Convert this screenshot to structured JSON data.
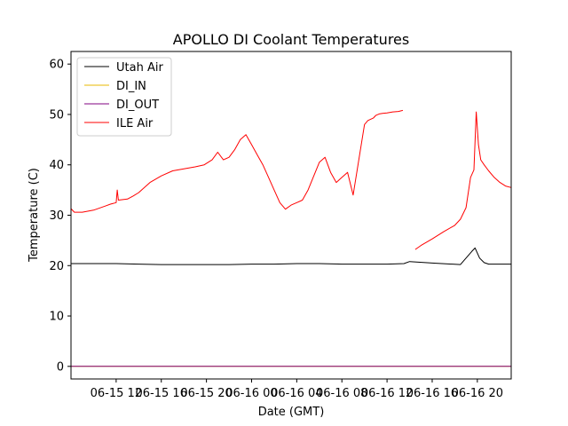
{
  "chart_data": {
    "type": "line",
    "title": "APOLLO DI Coolant Temperatures",
    "xlabel": "Date (GMT)",
    "ylabel": "Temperature (C)",
    "xlim": [
      0,
      39
    ],
    "ylim": [
      -2.5,
      62.5
    ],
    "yticks": [
      0,
      10,
      20,
      30,
      40,
      50,
      60
    ],
    "xticks": [
      {
        "x": 4,
        "label": "06-15 12"
      },
      {
        "x": 8,
        "label": "06-15 16"
      },
      {
        "x": 12,
        "label": "06-15 20"
      },
      {
        "x": 16,
        "label": "06-16 00"
      },
      {
        "x": 20,
        "label": "06-16 04"
      },
      {
        "x": 24,
        "label": "06-16 08"
      },
      {
        "x": 28,
        "label": "06-16 12"
      },
      {
        "x": 32,
        "label": "06-16 16"
      },
      {
        "x": 36,
        "label": "06-16 20"
      }
    ],
    "legend_position": "top-left",
    "series": [
      {
        "name": "Utah Air",
        "color": "#000000",
        "x": [
          0,
          2,
          4,
          6,
          8,
          10,
          12,
          14,
          16,
          18,
          20,
          22,
          24,
          26,
          28,
          29.5,
          30,
          32,
          34.5,
          35,
          35.5,
          35.8,
          36.2,
          36.6,
          37,
          38,
          39
        ],
        "y": [
          20.4,
          20.4,
          20.4,
          20.3,
          20.2,
          20.2,
          20.2,
          20.2,
          20.3,
          20.3,
          20.4,
          20.4,
          20.3,
          20.3,
          20.3,
          20.4,
          20.8,
          20.5,
          20.2,
          21.5,
          22.8,
          23.5,
          21.5,
          20.6,
          20.3,
          20.3,
          20.3
        ]
      },
      {
        "name": "DI_IN",
        "color": "#e8b800",
        "x": [
          0,
          39
        ],
        "y": [
          0,
          0
        ]
      },
      {
        "name": "DI_OUT",
        "color": "#800080",
        "x": [
          0,
          39
        ],
        "y": [
          0,
          0
        ]
      },
      {
        "name": "ILE Air",
        "color": "#ff0000",
        "x": [
          0,
          0.3,
          1,
          2,
          3,
          3.5,
          4,
          4.1,
          4.2,
          5,
          5.5,
          6,
          6.5,
          7,
          8,
          9,
          10,
          11,
          11.8,
          12.5,
          13,
          13.5,
          14,
          14.5,
          15,
          15.5,
          16,
          16.5,
          17,
          17.5,
          18,
          18.5,
          19,
          19.5,
          20,
          20.5,
          21,
          22,
          22.5,
          23,
          23.5,
          24,
          24.5,
          25,
          25.5,
          26,
          26.3,
          26.8,
          27,
          27.3,
          27.6,
          28,
          28.5,
          29,
          29.4
        ],
        "y": [
          31.3,
          30.6,
          30.6,
          31.0,
          31.8,
          32.2,
          32.5,
          35.0,
          33.0,
          33.2,
          33.8,
          34.5,
          35.5,
          36.5,
          37.8,
          38.8,
          39.2,
          39.6,
          40.0,
          41.0,
          42.5,
          41.0,
          41.5,
          43.0,
          45.0,
          46.0,
          44.0,
          42.0,
          40.0,
          37.5,
          35.0,
          32.5,
          31.2,
          32.0,
          32.5,
          33.0,
          35.0,
          40.5,
          41.5,
          38.5,
          36.5,
          37.5,
          38.5,
          34.0,
          41.0,
          48.0,
          48.8,
          49.3,
          49.8,
          50.1,
          50.2,
          50.3,
          50.5,
          50.6,
          50.8
        ]
      },
      {
        "name": "ILE Air",
        "color": "#ff0000",
        "x": [
          30.5,
          31,
          32,
          33,
          34,
          34.5,
          35,
          35.4,
          35.7,
          35.9,
          36.1,
          36.3,
          36.6,
          37,
          37.5,
          38,
          38.5,
          39
        ],
        "y": [
          23.2,
          24.0,
          25.3,
          26.7,
          28.0,
          29.2,
          31.5,
          37.5,
          39.0,
          50.5,
          44.0,
          41.0,
          40.0,
          38.8,
          37.5,
          36.5,
          35.8,
          35.5
        ]
      }
    ]
  }
}
